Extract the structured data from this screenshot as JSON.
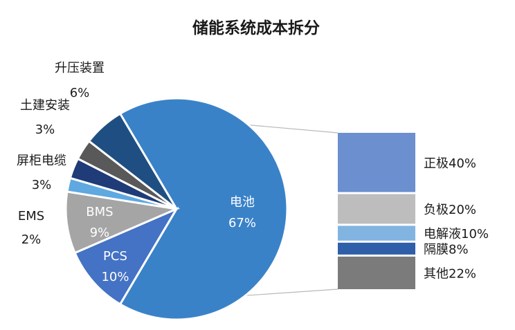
{
  "chart_data": {
    "type": "bar-of-pie",
    "title": "储能系统成本拆分",
    "pie": {
      "slices": [
        {
          "name": "电池",
          "value_label": "67%",
          "value": 67,
          "color": "#3a82c8",
          "label_pos": "inside"
        },
        {
          "name": "PCS",
          "value_label": "10%",
          "value": 10,
          "color": "#4472c4",
          "label_pos": "inside"
        },
        {
          "name": "BMS",
          "value_label": "9%",
          "value": 9,
          "color": "#a5a5a5",
          "label_pos": "inside"
        },
        {
          "name": "EMS",
          "value_label": "2%",
          "value": 2,
          "color": "#5fa8e0",
          "label_pos": "outside"
        },
        {
          "name": "屏柜电缆",
          "value_label": "3%",
          "value": 3,
          "color": "#1f3c78",
          "label_pos": "outside"
        },
        {
          "name": "土建安装",
          "value_label": "3%",
          "value": 3,
          "color": "#595959",
          "label_pos": "outside"
        },
        {
          "name": "升压装置",
          "value_label": "6%",
          "value": 6,
          "color": "#1f4f82",
          "label_pos": "outside"
        }
      ]
    },
    "breakdown": {
      "of_slice": "电池",
      "segments": [
        {
          "name": "正极",
          "value_label": "40%",
          "value": 40,
          "color": "#6b8fcf"
        },
        {
          "name": "负极",
          "value_label": "20%",
          "value": 20,
          "color": "#bdbdbd"
        },
        {
          "name": "电解液",
          "value_label": "10%",
          "value": 10,
          "color": "#82b4e2"
        },
        {
          "name": "隔膜",
          "value_label": "8%",
          "value": 8,
          "color": "#2f5fa8"
        },
        {
          "name": "其他",
          "value_label": "22%",
          "value": 22,
          "color": "#7b7b7b"
        }
      ]
    },
    "connector_color": "#b8b8b8"
  }
}
